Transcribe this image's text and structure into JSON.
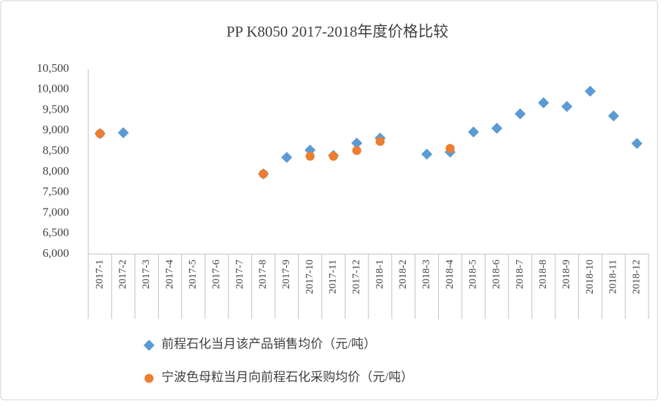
{
  "chart_data": {
    "type": "scatter",
    "title": "PP K8050  2017-2018年度价格比较",
    "categories": [
      "2017-1",
      "2017-2",
      "2017-3",
      "2017-4",
      "2017-5",
      "2017-6",
      "2017-7",
      "2017-8",
      "2017-9",
      "2017-10",
      "2017-11",
      "2017-12",
      "2018-1",
      "2018-2",
      "2018-3",
      "2018-4",
      "2018-5",
      "2018-6",
      "2018-7",
      "2018-8",
      "2018-9",
      "2018-10",
      "2018-11",
      "2018-12"
    ],
    "series": [
      {
        "name": "前程石化当月该产品销售均价（元/吨）",
        "color": "#5b9bd5",
        "marker": "diamond",
        "values": [
          8930,
          8950,
          null,
          null,
          null,
          null,
          null,
          7950,
          8350,
          8530,
          8400,
          8700,
          8820,
          null,
          8430,
          8480,
          8970,
          9060,
          9410,
          9680,
          9590,
          9960,
          9360,
          8690
        ]
      },
      {
        "name": "宁波色母粒当月向前程石化采购均价（元/吨）",
        "color": "#ed7d31",
        "marker": "circle",
        "values": [
          8930,
          null,
          null,
          null,
          null,
          null,
          null,
          7950,
          null,
          8380,
          8380,
          8520,
          8740,
          null,
          null,
          8570,
          null,
          null,
          null,
          null,
          null,
          null,
          null,
          null
        ]
      }
    ],
    "ylim": [
      6000,
      10500
    ],
    "yticks": [
      {
        "value": 6000,
        "label": "6,000"
      },
      {
        "value": 6500,
        "label": "6,500"
      },
      {
        "value": 7000,
        "label": "7,000"
      },
      {
        "value": 7500,
        "label": "7,500"
      },
      {
        "value": 8000,
        "label": "8,000"
      },
      {
        "value": 8500,
        "label": "8,500"
      },
      {
        "value": 9000,
        "label": "9,000"
      },
      {
        "value": 9500,
        "label": "9,500"
      },
      {
        "value": 10000,
        "label": "10,000"
      },
      {
        "value": 10500,
        "label": "10,500"
      }
    ],
    "grid": false,
    "legend": "bottom"
  }
}
